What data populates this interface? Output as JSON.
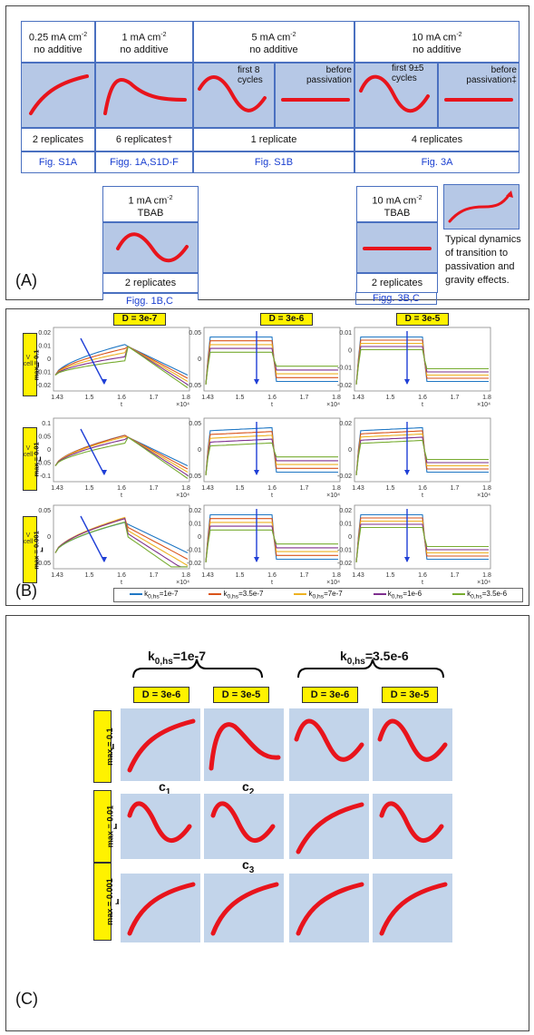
{
  "panel_a": {
    "label": "(A)",
    "columns": [
      {
        "title": "0.25 mA cm",
        "sup": "-2",
        "sub": "no additive",
        "replicates": "2 replicates",
        "fig": "Fig. S1A"
      },
      {
        "title": "1 mA cm",
        "sup": "-2",
        "sub": "no additive",
        "replicates": "6 replicates†",
        "fig": "Figg. 1A,S1D-F"
      },
      {
        "title": "5 mA cm",
        "sup": "-2",
        "sub": "no additive",
        "note_left": "first 8 cycles",
        "note_right": "before passivation",
        "replicates": "1 replicate",
        "fig": "Fig. S1B"
      },
      {
        "title": "10 mA cm",
        "sup": "-2",
        "sub": "no additive",
        "note_left": "first 9±5 cycles",
        "note_right": "before passivation‡",
        "replicates": "4 replicates",
        "fig": "Fig. 3A"
      }
    ],
    "tbab1": {
      "title": "1 mA cm",
      "sup": "-2",
      "sub": "TBAB",
      "replicates": "2 replicates",
      "fig": "Figg. 1B,C"
    },
    "tbab10": {
      "title": "10 mA cm",
      "sup": "-2",
      "sub": "TBAB",
      "replicates": "2 replicates",
      "fig": "Figg. 3B,C"
    },
    "typical_note": "Typical dynamics of transition to passivation and gravity effects."
  },
  "panel_b": {
    "label": "(B)",
    "col_titles": [
      "D = 3e-7",
      "D = 3e-6",
      "D = 3e-5"
    ],
    "row_titles": [
      "r",
      "r",
      "r"
    ],
    "row_values": [
      "max = 0.1",
      "max = 0.01",
      "max = 0.001"
    ],
    "ylabel": "V",
    "ylabel_sub": "cell",
    "xlabel": "t",
    "xscale": "×10⁴",
    "xticks": [
      "1.43",
      "1.5",
      "1.6",
      "1.7",
      "1.8"
    ],
    "legend": [
      {
        "k": "k",
        "sub": "0,hs",
        "val": "=1e-7",
        "color": "#1f77c4"
      },
      {
        "k": "k",
        "sub": "0,hs",
        "val": "=3.5e-7",
        "color": "#d95319"
      },
      {
        "k": "k",
        "sub": "0,hs",
        "val": "=7e-7",
        "color": "#edb120"
      },
      {
        "k": "k",
        "sub": "0,hs",
        "val": "=1e-6",
        "color": "#7e2f8e"
      },
      {
        "k": "k",
        "sub": "0,hs",
        "val": "=3.5e-6",
        "color": "#77ac30"
      }
    ],
    "yticks": [
      [
        "0.02",
        "0.01",
        "0",
        "-0.01",
        "-0.02"
      ],
      [
        "0.05",
        "0",
        "-0.05"
      ],
      [
        "0.01",
        "0",
        "-0.01",
        "-0.02"
      ],
      [
        "0.1",
        "0.05",
        "0",
        "-0.05",
        "-0.1"
      ],
      [
        "0.05",
        "0",
        "-0.05"
      ],
      [
        "0.02",
        "0",
        "-0.02"
      ],
      [
        "0.05",
        "0",
        "-0.05"
      ],
      [
        "0.02",
        "0.01",
        "0",
        "-0.01",
        "-0.02"
      ],
      [
        "0.02",
        "0.01",
        "0",
        "-0.01",
        "-0.02"
      ]
    ]
  },
  "panel_c": {
    "label": "(C)",
    "group1": {
      "k": "k",
      "sub": "0,hs",
      "val": "=1e-7"
    },
    "group2": {
      "k": "k",
      "sub": "0,hs",
      "val": "=3.5e-6"
    },
    "col_titles": [
      "D = 3e-6",
      "D = 3e-5",
      "D = 3e-6",
      "D = 3e-5"
    ],
    "row_titles": [
      "max = 0.1",
      "max = 0.01",
      "max = 0.001"
    ],
    "row_r": "r",
    "case_labels": [
      {
        "c": "c",
        "sub": "1"
      },
      {
        "c": "c",
        "sub": "2"
      },
      {
        "c": "c",
        "sub": "3"
      }
    ]
  },
  "colors": {
    "curve": "#e8141c",
    "cell_blue": "#b6c8e6",
    "tag_yellow": "#fff200",
    "arrow": "#1f3fd6"
  }
}
